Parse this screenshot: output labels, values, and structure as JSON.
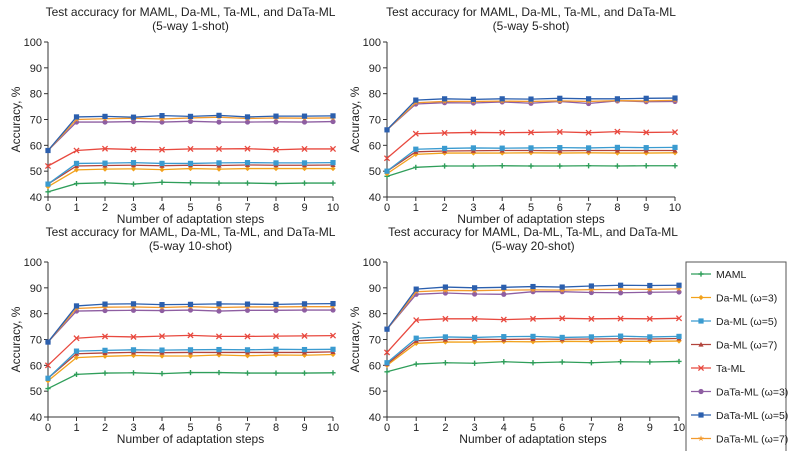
{
  "chart_data": [
    {
      "type": "line",
      "title": "Test accuracy for MAML, Da-ML, Ta-ML, and DaTa-ML",
      "subtitle": "(5-way 1-shot)",
      "xlabel": "Number of adaptation steps",
      "ylabel": "Accuracy, %",
      "xlim": [
        0,
        10
      ],
      "ylim": [
        40,
        100
      ],
      "x_ticks": [
        "0",
        "1",
        "2",
        "3",
        "4",
        "5",
        "6",
        "7",
        "8",
        "9",
        "10"
      ],
      "y_ticks": [
        "40",
        "50",
        "60",
        "70",
        "80",
        "90",
        "100"
      ],
      "x": [
        0,
        1,
        2,
        3,
        4,
        5,
        6,
        7,
        8,
        9,
        10
      ],
      "series": [
        {
          "name": "MAML",
          "values": [
            42,
            45.2,
            45.5,
            45,
            45.7,
            45.5,
            45.4,
            45.4,
            45.2,
            45.4,
            45.4
          ]
        },
        {
          "name": "Da-ML (ω=3)",
          "values": [
            44,
            50.5,
            50.8,
            50.9,
            50.6,
            51,
            50.8,
            51,
            51,
            51,
            51
          ]
        },
        {
          "name": "Da-ML (ω=5)",
          "values": [
            45,
            53,
            53.1,
            53.3,
            53,
            53,
            53.2,
            53.3,
            53.2,
            53.2,
            53.3
          ]
        },
        {
          "name": "Da-ML (ω=7)",
          "values": [
            45,
            52,
            52.2,
            52.3,
            52.1,
            52.3,
            52.2,
            52.4,
            52.3,
            52.3,
            52.4
          ]
        },
        {
          "name": "Ta-ML",
          "values": [
            52,
            58,
            58.7,
            58.4,
            58.3,
            58.6,
            58.6,
            58.7,
            58.3,
            58.6,
            58.6
          ]
        },
        {
          "name": "DaTa-ML (ω=3)",
          "values": [
            58,
            69,
            69,
            69.2,
            69,
            69.3,
            69,
            69,
            69.1,
            69,
            69.2
          ]
        },
        {
          "name": "DaTa-ML (ω=5)",
          "values": [
            58,
            71,
            71.2,
            70.9,
            71.5,
            71.2,
            71.6,
            71,
            71.3,
            71.3,
            71.4
          ]
        },
        {
          "name": "DaTa-ML (ω=7)",
          "values": [
            58,
            70,
            70.3,
            70.5,
            70.2,
            70.6,
            70.9,
            70.4,
            70.6,
            70.5,
            70.6
          ]
        }
      ]
    },
    {
      "type": "line",
      "title": "Test accuracy for MAML, Da-ML, Ta-ML, and DaTa-ML",
      "subtitle": "(5-way 5-shot)",
      "xlabel": "Number of adaptation steps",
      "ylabel": "Accuracy, %",
      "xlim": [
        0,
        10
      ],
      "ylim": [
        40,
        100
      ],
      "x_ticks": [
        "0",
        "1",
        "2",
        "3",
        "4",
        "5",
        "6",
        "7",
        "8",
        "9",
        "10"
      ],
      "y_ticks": [
        "40",
        "50",
        "60",
        "70",
        "80",
        "90",
        "100"
      ],
      "x": [
        0,
        1,
        2,
        3,
        4,
        5,
        6,
        7,
        8,
        9,
        10
      ],
      "series": [
        {
          "name": "MAML",
          "values": [
            48,
            51.5,
            52,
            52,
            52.1,
            52,
            52,
            52.1,
            52,
            52.1,
            52.1
          ]
        },
        {
          "name": "Da-ML (ω=3)",
          "values": [
            49,
            56.5,
            57,
            57,
            57,
            57.1,
            57,
            57.1,
            57,
            57,
            57.1
          ]
        },
        {
          "name": "Da-ML (ω=5)",
          "values": [
            50,
            58.5,
            58.8,
            59,
            58.9,
            59,
            59.1,
            59,
            59.2,
            59.1,
            59.2
          ]
        },
        {
          "name": "Da-ML (ω=7)",
          "values": [
            50,
            57.5,
            57.8,
            57.9,
            58,
            58,
            57.9,
            58,
            58,
            58,
            58
          ]
        },
        {
          "name": "Ta-ML",
          "values": [
            55,
            64.5,
            64.8,
            65,
            64.9,
            65,
            65.2,
            64.9,
            65.3,
            65,
            65.1
          ]
        },
        {
          "name": "DaTa-ML (ω=3)",
          "values": [
            66,
            76,
            76.5,
            76.4,
            76.8,
            76.3,
            77,
            76.2,
            77.2,
            76.9,
            77
          ]
        },
        {
          "name": "DaTa-ML (ω=5)",
          "values": [
            66,
            77.5,
            78,
            77.8,
            78,
            77.9,
            78.2,
            78,
            78,
            78.2,
            78.3
          ]
        },
        {
          "name": "DaTa-ML (ω=7)",
          "values": [
            66,
            76.5,
            77,
            77,
            77.1,
            77,
            77.2,
            77,
            77.3,
            77.2,
            77.4
          ]
        }
      ]
    },
    {
      "type": "line",
      "title": "Test accuracy for MAML, Da-ML, Ta-ML, and DaTa-ML",
      "subtitle": "(5-way 10-shot)",
      "xlabel": "Number of adaptation steps",
      "ylabel": "Accuracy, %",
      "xlim": [
        0,
        10
      ],
      "ylim": [
        40,
        100
      ],
      "x_ticks": [
        "0",
        "1",
        "2",
        "3",
        "4",
        "5",
        "6",
        "7",
        "8",
        "9",
        "10"
      ],
      "y_ticks": [
        "40",
        "50",
        "60",
        "70",
        "80",
        "90",
        "100"
      ],
      "x": [
        0,
        1,
        2,
        3,
        4,
        5,
        6,
        7,
        8,
        9,
        10
      ],
      "series": [
        {
          "name": "MAML",
          "values": [
            51,
            56.5,
            57,
            57.1,
            56.8,
            57.2,
            57.2,
            57,
            57,
            57,
            57.1
          ]
        },
        {
          "name": "Da-ML (ω=3)",
          "values": [
            54,
            63,
            63.5,
            63.8,
            63.6,
            63.6,
            64,
            63.7,
            64,
            63.9,
            64.2
          ]
        },
        {
          "name": "Da-ML (ω=5)",
          "values": [
            55,
            65.5,
            65.8,
            66,
            65.9,
            66,
            66.1,
            66,
            66.2,
            66.1,
            66.2
          ]
        },
        {
          "name": "Da-ML (ω=7)",
          "values": [
            55,
            64.5,
            64.8,
            65,
            64.9,
            65,
            65,
            65,
            65,
            65,
            65.2
          ]
        },
        {
          "name": "Ta-ML",
          "values": [
            60,
            70.5,
            71.2,
            71,
            71.3,
            71.6,
            71.2,
            71.2,
            71.3,
            71.4,
            71.5
          ]
        },
        {
          "name": "DaTa-ML (ω=3)",
          "values": [
            69,
            81,
            81.2,
            81.3,
            81.2,
            81.4,
            81,
            81.3,
            81.3,
            81.4,
            81.4
          ]
        },
        {
          "name": "DaTa-ML (ω=5)",
          "values": [
            69,
            83,
            83.7,
            83.8,
            83.5,
            83.6,
            83.8,
            83.7,
            83.6,
            83.8,
            83.9
          ]
        },
        {
          "name": "DaTa-ML (ω=7)",
          "values": [
            69,
            82,
            82.5,
            82.6,
            82.4,
            82.7,
            82.4,
            82.6,
            82.6,
            82.7,
            82.7
          ]
        }
      ]
    },
    {
      "type": "line",
      "title": "Test accuracy for MAML, Da-ML, Ta-ML, and DaTa-ML",
      "subtitle": "(5-way 20-shot)",
      "xlabel": "Number of adaptation steps",
      "ylabel": "Accuracy, %",
      "xlim": [
        0,
        10
      ],
      "ylim": [
        40,
        100
      ],
      "x_ticks": [
        "0",
        "1",
        "2",
        "3",
        "4",
        "5",
        "6",
        "7",
        "8",
        "9",
        "10"
      ],
      "y_ticks": [
        "40",
        "50",
        "60",
        "70",
        "80",
        "90",
        "100"
      ],
      "x": [
        0,
        1,
        2,
        3,
        4,
        5,
        6,
        7,
        8,
        9,
        10
      ],
      "series": [
        {
          "name": "MAML",
          "values": [
            57.5,
            60.5,
            61,
            60.8,
            61.4,
            61,
            61.3,
            61,
            61.4,
            61.3,
            61.5
          ]
        },
        {
          "name": "Da-ML (ω=3)",
          "values": [
            60,
            68.5,
            69,
            69,
            69.2,
            69.1,
            69.3,
            69.2,
            69.3,
            69.3,
            69.4
          ]
        },
        {
          "name": "Da-ML (ω=5)",
          "values": [
            61,
            70.5,
            71,
            70.8,
            71.1,
            71.2,
            70.8,
            71,
            71.3,
            71,
            71.2
          ]
        },
        {
          "name": "Da-ML (ω=7)",
          "values": [
            60.5,
            69.5,
            70,
            70.1,
            70,
            70.2,
            70.1,
            70.2,
            70.3,
            70.2,
            70.4
          ]
        },
        {
          "name": "Ta-ML",
          "values": [
            65,
            77.5,
            78,
            78,
            77.7,
            78,
            78.2,
            78,
            78.1,
            78,
            78.2
          ]
        },
        {
          "name": "DaTa-ML (ω=3)",
          "values": [
            74,
            87.5,
            88,
            87.6,
            87.5,
            88.5,
            88.5,
            88.2,
            88.1,
            88.3,
            88.4
          ]
        },
        {
          "name": "DaTa-ML (ω=5)",
          "values": [
            74,
            89.5,
            90.3,
            90,
            90.2,
            90.5,
            90.3,
            90.7,
            91,
            90.9,
            91
          ]
        },
        {
          "name": "DaTa-ML (ω=7)",
          "values": [
            74,
            88.5,
            89,
            88.9,
            89.1,
            89.2,
            89.1,
            89.3,
            89.5,
            89.4,
            89.6
          ]
        }
      ]
    }
  ],
  "legend": {
    "entries": [
      "MAML",
      "Da-ML (ω=3)",
      "Da-ML (ω=5)",
      "Da-ML (ω=7)",
      "Ta-ML",
      "DaTa-ML (ω=3)",
      "DaTa-ML (ω=5)",
      "DaTa-ML (ω=7)"
    ],
    "markers": [
      "plus",
      "diamond",
      "square",
      "triangle",
      "x",
      "circle",
      "square",
      "star"
    ],
    "colors": [
      "#2f9e5a",
      "#f2a21c",
      "#3a9bd0",
      "#b2443c",
      "#e8493f",
      "#8e5ea2",
      "#2b5fae",
      "#f29a2e"
    ]
  }
}
